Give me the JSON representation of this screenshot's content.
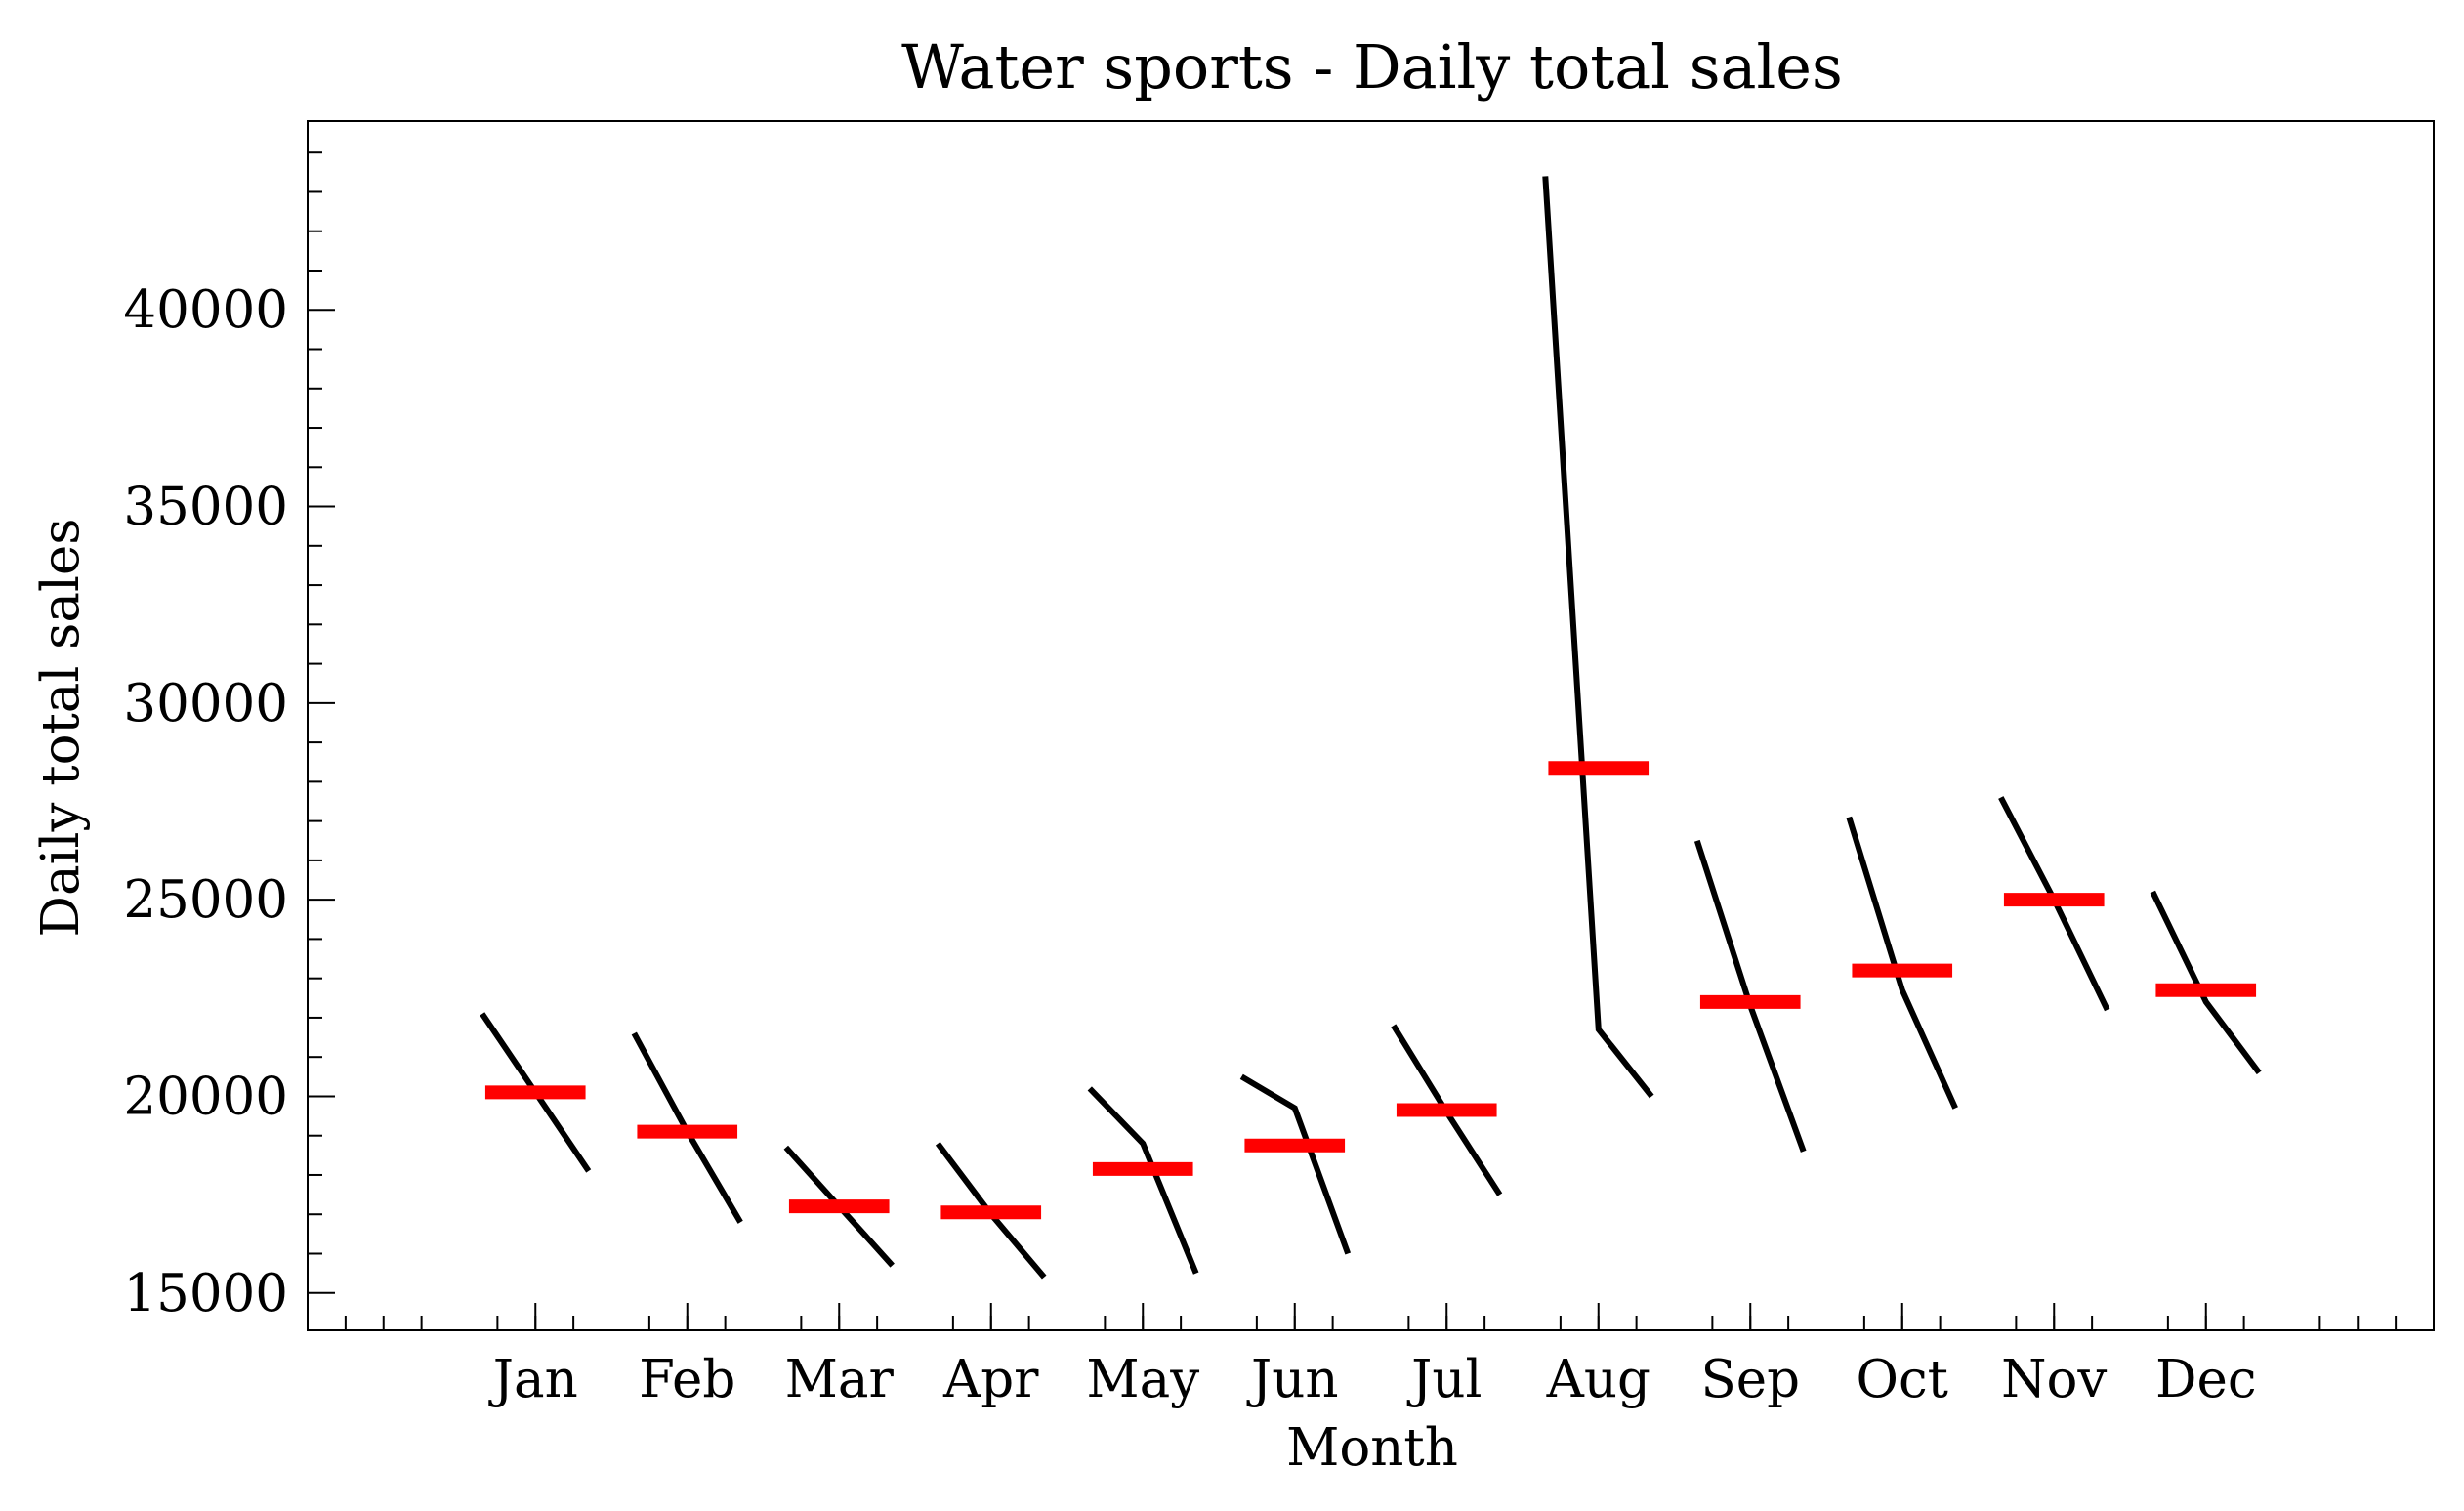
{
  "chart_data": {
    "type": "line",
    "title": "Water sports - Daily total sales",
    "xlabel": "Month",
    "ylabel": "Daily total sales",
    "ylim": [
      14050,
      44800
    ],
    "yticks": [
      15000,
      20000,
      25000,
      30000,
      35000,
      40000
    ],
    "grid": false,
    "categories": [
      "Jan",
      "Feb",
      "Mar",
      "Apr",
      "May",
      "Jun",
      "Jul",
      "Aug",
      "Sep",
      "Oct",
      "Nov",
      "Dec"
    ],
    "series": [
      {
        "values": [
          [
            22100,
            20100,
            18100
          ],
          [
            21600,
            19100,
            16800
          ],
          [
            18700,
            17200,
            15700
          ],
          [
            18800,
            17000,
            15400
          ],
          [
            20200,
            18800,
            15500
          ],
          [
            20500,
            19700,
            16000
          ],
          [
            21800,
            19600,
            17500
          ],
          [
            43400,
            21700,
            20000
          ],
          [
            26500,
            22300,
            18600
          ],
          [
            27100,
            22700,
            19700
          ],
          [
            27600,
            25000,
            22200
          ],
          [
            25200,
            22400,
            20600
          ]
        ]
      },
      {
        "values": [
          20100,
          19100,
          17200,
          17050,
          18150,
          18750,
          19650,
          28350,
          22400,
          23200,
          25000,
          22700
        ]
      }
    ],
    "colors": {
      "subseries": "#000000",
      "mean": "#ff0000"
    }
  }
}
